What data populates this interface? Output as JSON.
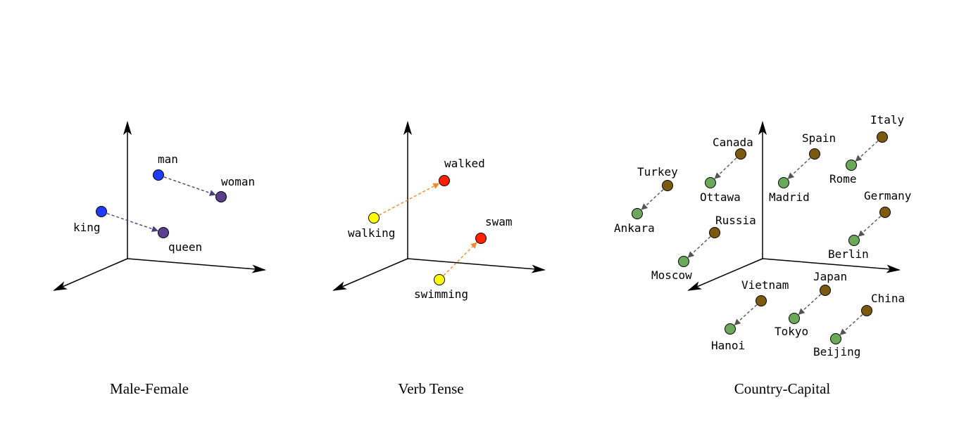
{
  "colors": {
    "background": "#ffffff",
    "axis": "#000000",
    "blue_point": "#1f3bff",
    "purple_point": "#5a3f8e",
    "male_female_arrow": "#4b3f7a",
    "yellow_point": "#ffff00",
    "red_point": "#ff2200",
    "verb_arrow": "#f08a30",
    "country_point": "#7b5a0f",
    "capital_point": "#6aa85a",
    "country_arrow": "#555555"
  },
  "icons": {
    "axis_arrowhead": "arrowhead-icon"
  },
  "panels": [
    {
      "caption": "Male-Female",
      "pairs": [
        {
          "from": {
            "label": "man",
            "color": "blue_point"
          },
          "to": {
            "label": "woman",
            "color": "purple_point"
          },
          "arrow_color": "male_female_arrow"
        },
        {
          "from": {
            "label": "king",
            "color": "blue_point"
          },
          "to": {
            "label": "queen",
            "color": "purple_point"
          },
          "arrow_color": "male_female_arrow"
        }
      ]
    },
    {
      "caption": "Verb Tense",
      "pairs": [
        {
          "from": {
            "label": "walking",
            "color": "yellow_point"
          },
          "to": {
            "label": "walked",
            "color": "red_point"
          },
          "arrow_color": "verb_arrow"
        },
        {
          "from": {
            "label": "swimming",
            "color": "yellow_point"
          },
          "to": {
            "label": "swam",
            "color": "red_point"
          },
          "arrow_color": "verb_arrow"
        }
      ]
    },
    {
      "caption": "Country-Capital",
      "pairs": [
        {
          "from": {
            "label": "Turkey",
            "color": "country_point"
          },
          "to": {
            "label": "Ankara",
            "color": "capital_point"
          },
          "arrow_color": "country_arrow"
        },
        {
          "from": {
            "label": "Canada",
            "color": "country_point"
          },
          "to": {
            "label": "Ottawa",
            "color": "capital_point"
          },
          "arrow_color": "country_arrow"
        },
        {
          "from": {
            "label": "Spain",
            "color": "country_point"
          },
          "to": {
            "label": "Madrid",
            "color": "capital_point"
          },
          "arrow_color": "country_arrow"
        },
        {
          "from": {
            "label": "Italy",
            "color": "country_point"
          },
          "to": {
            "label": "Rome",
            "color": "capital_point"
          },
          "arrow_color": "country_arrow"
        },
        {
          "from": {
            "label": "Russia",
            "color": "country_point"
          },
          "to": {
            "label": "Moscow",
            "color": "capital_point"
          },
          "arrow_color": "country_arrow"
        },
        {
          "from": {
            "label": "Germany",
            "color": "country_point"
          },
          "to": {
            "label": "Berlin",
            "color": "capital_point"
          },
          "arrow_color": "country_arrow"
        },
        {
          "from": {
            "label": "Vietnam",
            "color": "country_point"
          },
          "to": {
            "label": "Hanoi",
            "color": "capital_point"
          },
          "arrow_color": "country_arrow"
        },
        {
          "from": {
            "label": "Japan",
            "color": "country_point"
          },
          "to": {
            "label": "Tokyo",
            "color": "capital_point"
          },
          "arrow_color": "country_arrow"
        },
        {
          "from": {
            "label": "China",
            "color": "country_point"
          },
          "to": {
            "label": "Beijing",
            "color": "capital_point"
          },
          "arrow_color": "country_arrow"
        }
      ]
    }
  ]
}
